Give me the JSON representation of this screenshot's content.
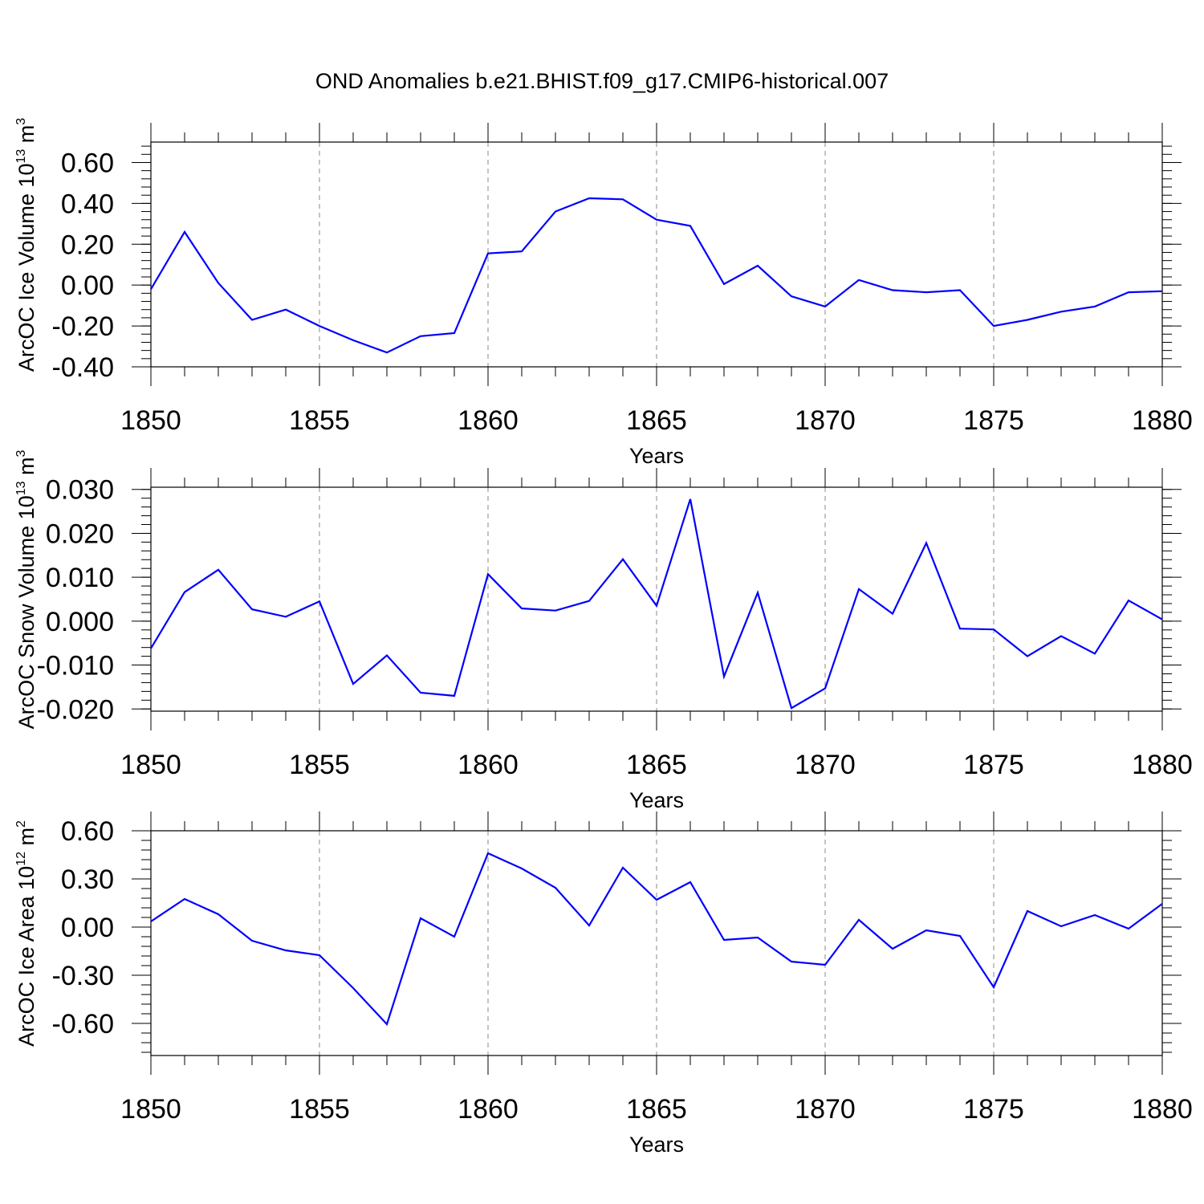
{
  "chart_data": [
    {
      "type": "line",
      "title": "OND Anomalies b.e21.BHIST.f09_g17.CMIP6-historical.007",
      "xlabel": "Years",
      "ylabel": {
        "base": "ArcOC Ice Volume 10",
        "exp": "13",
        "unit": " m",
        "unit_exp": "3"
      },
      "xlim": [
        1850,
        1880
      ],
      "ylim": [
        -0.4,
        0.7
      ],
      "xticks": [
        1850,
        1855,
        1860,
        1865,
        1870,
        1875,
        1880
      ],
      "xtick_labels": [
        "1850",
        "1855",
        "1860",
        "1865",
        "1870",
        "1875",
        "1880"
      ],
      "yticks": [
        -0.4,
        -0.2,
        0.0,
        0.2,
        0.4,
        0.6
      ],
      "ytick_labels": [
        "-0.40",
        "-0.20",
        "0.00",
        "0.20",
        "0.40",
        "0.60"
      ],
      "grid": "vertical dashed at major x ticks",
      "line_color": "#0000ff",
      "x": [
        1850,
        1851,
        1852,
        1853,
        1854,
        1855,
        1856,
        1857,
        1858,
        1859,
        1860,
        1861,
        1862,
        1863,
        1864,
        1865,
        1866,
        1867,
        1868,
        1869,
        1870,
        1871,
        1872,
        1873,
        1874,
        1875,
        1876,
        1877,
        1878,
        1879,
        1880
      ],
      "y": [
        -0.02,
        0.26,
        0.01,
        -0.17,
        -0.12,
        -0.2,
        -0.27,
        -0.33,
        -0.25,
        -0.235,
        0.155,
        0.165,
        0.36,
        0.425,
        0.42,
        0.32,
        0.29,
        0.005,
        0.095,
        -0.055,
        -0.105,
        0.025,
        -0.025,
        -0.035,
        -0.025,
        -0.2,
        -0.17,
        -0.13,
        -0.105,
        -0.035,
        -0.03
      ]
    },
    {
      "type": "line",
      "xlabel": "Years",
      "ylabel": {
        "base": "ArcOC Snow Volume 10",
        "exp": "13",
        "unit": " m",
        "unit_exp": "3"
      },
      "xlim": [
        1850,
        1880
      ],
      "ylim": [
        -0.0205,
        0.0305
      ],
      "xticks": [
        1850,
        1855,
        1860,
        1865,
        1870,
        1875,
        1880
      ],
      "xtick_labels": [
        "1850",
        "1855",
        "1860",
        "1865",
        "1870",
        "1875",
        "1880"
      ],
      "yticks": [
        -0.02,
        -0.01,
        0.0,
        0.01,
        0.02,
        0.03
      ],
      "ytick_labels": [
        "-0.020",
        "-0.010",
        "0.000",
        "0.010",
        "0.020",
        "0.030"
      ],
      "grid": "vertical dashed at major x ticks",
      "line_color": "#0000ff",
      "x": [
        1850,
        1851,
        1852,
        1853,
        1854,
        1855,
        1856,
        1857,
        1858,
        1859,
        1860,
        1861,
        1862,
        1863,
        1864,
        1865,
        1866,
        1867,
        1868,
        1869,
        1870,
        1871,
        1872,
        1873,
        1874,
        1875,
        1876,
        1877,
        1878,
        1879,
        1880
      ],
      "y": [
        -0.0062,
        0.0066,
        0.0117,
        0.0027,
        0.001,
        0.0045,
        -0.0143,
        -0.0078,
        -0.0163,
        -0.017,
        0.0107,
        0.0029,
        0.0024,
        0.0046,
        0.0141,
        0.0035,
        0.0278,
        -0.0126,
        0.0065,
        -0.0198,
        -0.0153,
        0.0073,
        0.0017,
        0.0178,
        -0.0017,
        -0.0019,
        -0.008,
        -0.0034,
        -0.0074,
        0.0047,
        0.0004
      ]
    },
    {
      "type": "line",
      "xlabel": "Years",
      "ylabel": {
        "base": "ArcOC Ice Area 10",
        "exp": "12",
        "unit": " m",
        "unit_exp": "2"
      },
      "xlim": [
        1850,
        1880
      ],
      "ylim": [
        -0.8,
        0.6
      ],
      "xticks": [
        1850,
        1855,
        1860,
        1865,
        1870,
        1875,
        1880
      ],
      "xtick_labels": [
        "1850",
        "1855",
        "1860",
        "1865",
        "1870",
        "1875",
        "1880"
      ],
      "yticks": [
        -0.6,
        -0.3,
        0.0,
        0.3,
        0.6
      ],
      "ytick_labels": [
        "-0.60",
        "-0.30",
        "0.00",
        "0.30",
        "0.60"
      ],
      "grid": "vertical dashed at major x ticks",
      "line_color": "#0000ff",
      "x": [
        1850,
        1851,
        1852,
        1853,
        1854,
        1855,
        1856,
        1857,
        1858,
        1859,
        1860,
        1861,
        1862,
        1863,
        1864,
        1865,
        1866,
        1867,
        1868,
        1869,
        1870,
        1871,
        1872,
        1873,
        1874,
        1875,
        1876,
        1877,
        1878,
        1879,
        1880
      ],
      "y": [
        0.035,
        0.175,
        0.08,
        -0.085,
        -0.145,
        -0.175,
        -0.38,
        -0.605,
        0.055,
        -0.06,
        0.46,
        0.365,
        0.245,
        0.01,
        0.37,
        0.17,
        0.28,
        -0.08,
        -0.065,
        -0.215,
        -0.235,
        0.045,
        -0.135,
        -0.02,
        -0.055,
        -0.375,
        0.1,
        0.005,
        0.075,
        -0.01,
        0.145
      ]
    }
  ]
}
